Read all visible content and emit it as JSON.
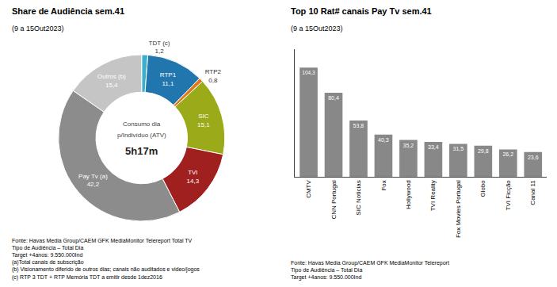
{
  "chart_data": [
    {
      "type": "pie",
      "title": "Share de Audiência sem.41",
      "subtitle": "(9 a 15Out2023)",
      "categories": [
        "TDT (c)",
        "RTP1",
        "RTP2",
        "SIC",
        "TVI",
        "Pay Tv (a)",
        "Outros (b)"
      ],
      "values": [
        1.2,
        11.1,
        0.8,
        15.1,
        14.3,
        42.2,
        15.4
      ],
      "value_labels": [
        "1,2",
        "11,1",
        "0,8",
        "15,1",
        "14,3",
        "42,2",
        "15,4"
      ],
      "colors": [
        "#3bb0cc",
        "#2176ae",
        "#e07820",
        "#9aaa18",
        "#a02020",
        "#8c8c8c",
        "#c5c5c5"
      ],
      "data_labels": true,
      "center_text": [
        "Consumo dia",
        "p/Indivíduo (ATV)",
        "5h17m"
      ],
      "footnote": "Fonte: Havas Media Group/CAEM GFK MediaMonitor Telereport Total TV\nTipo de Audiência – Total Dia\nTarget +4anos: 9.550.000Ind\n(a)Total canais de subscrição\n(b) Visionamento diferido de outros dias; canais não auditados e video/jogos\n(c) RTP 3 TDT + RTP Memória TDT a emitir desde 1dez2016"
    },
    {
      "type": "bar",
      "title": "Top 10 Rat# canais Pay Tv sem.41",
      "subtitle": "(9 a 15Out2023)",
      "categories": [
        "CMTV",
        "CNN Portugal",
        "SIC Notícias",
        "Fox",
        "Hollywood",
        "TVI Reality",
        "Fox Movies Portugal",
        "Globo",
        "TVI Ficção",
        "Canal 11"
      ],
      "values": [
        104.3,
        80.4,
        53.8,
        40.3,
        35.2,
        33.4,
        31.5,
        29.8,
        26.2,
        23.6
      ],
      "value_labels": [
        "104,3",
        "80,4",
        "53,8",
        "40,3",
        "35,2",
        "33,4",
        "31,5",
        "29,8",
        "26,2",
        "23,6"
      ],
      "color": "#888888",
      "ylim": [
        0,
        122
      ],
      "grid": false,
      "tick_labels": "x",
      "data_labels": true,
      "footnote": "Fonte: Havas Media Group/CAEM GFK MediaMonitor Telereport\nTipo de Audiência – Total Dia\nTarget +4anos: 9.550.000Ind"
    }
  ]
}
